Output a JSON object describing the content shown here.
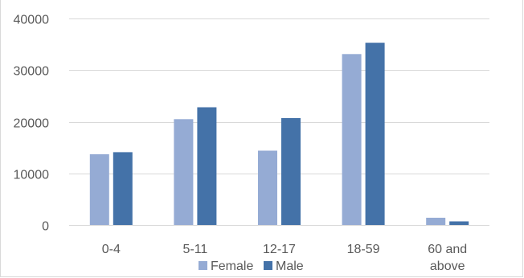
{
  "chart_data": {
    "type": "bar",
    "title": "",
    "xlabel": "",
    "ylabel": "",
    "categories": [
      [
        "0-4"
      ],
      [
        "5-11"
      ],
      [
        "12-17"
      ],
      [
        "18-59"
      ],
      [
        "60 and",
        "above"
      ]
    ],
    "series": [
      {
        "name": "Female",
        "color": "#95abd4",
        "values": [
          13700,
          20500,
          14400,
          33100,
          1400
        ]
      },
      {
        "name": "Male",
        "color": "#4472a8",
        "values": [
          14100,
          22800,
          20700,
          35300,
          700
        ]
      }
    ],
    "ylim": [
      0,
      40000
    ],
    "yticks": [
      "0",
      "10000",
      "20000",
      "30000",
      "40000"
    ],
    "grid": true,
    "legend": "bottom"
  }
}
